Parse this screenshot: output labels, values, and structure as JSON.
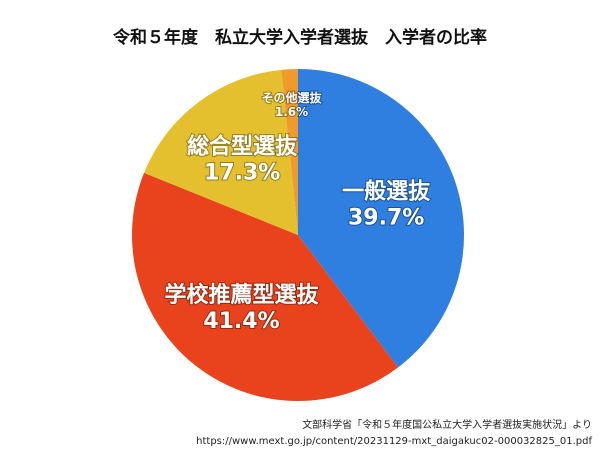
{
  "chart_data": {
    "type": "pie",
    "title": "令和５年度　私立大学入学者選抜　入学者の比率",
    "categories": [
      "一般選抜",
      "学校推薦型選抜",
      "総合型選抜",
      "その他選抜"
    ],
    "values": [
      39.7,
      41.4,
      17.3,
      1.6
    ],
    "value_labels": [
      "39.7%",
      "41.4%",
      "17.3%",
      "1.6%"
    ],
    "colors": [
      "#2f7fe0",
      "#e8431d",
      "#e5c02e",
      "#f09a2c"
    ],
    "source": [
      "文部科学省「令和５年度国公私立大学入学者選抜実施状況」より",
      "https://www.mext.go.jp/content/20231129-mxt_daigakuc02-000032825_01.pdf"
    ]
  }
}
